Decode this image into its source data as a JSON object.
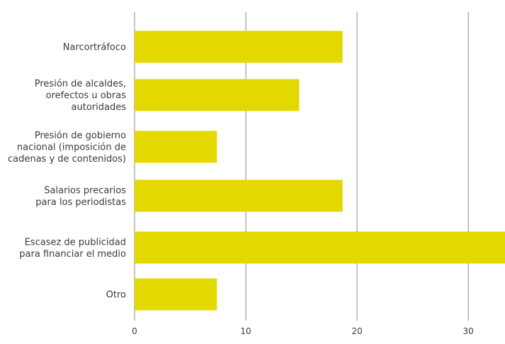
{
  "chart_data": {
    "type": "bar",
    "orientation": "horizontal",
    "categories": [
      [
        "Narcortráfoco"
      ],
      [
        "Presión de alcaldes,",
        "orefectos u obras",
        "autoridades"
      ],
      [
        "Presión de gobierno",
        "nacional (imposición de",
        "cadenas y de contenidos)"
      ],
      [
        "Salarios precarios",
        "para los periodistas"
      ],
      [
        "Escasez de publicidad",
        "para financiar el medio"
      ],
      [
        "Otro"
      ]
    ],
    "values": [
      18.7,
      14.8,
      7.4,
      18.7,
      33.3,
      7.4
    ],
    "xticks": [
      "0",
      "10",
      "20",
      "30"
    ],
    "xlim": [
      0,
      33.3
    ],
    "grid": true,
    "bar_color": "#e3d800",
    "grid_color": "#8a8a8a",
    "title": "",
    "xlabel": "",
    "ylabel": ""
  }
}
